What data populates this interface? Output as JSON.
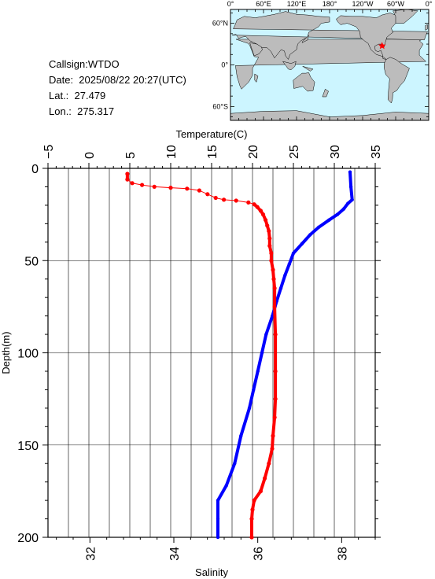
{
  "info": {
    "callsign": "Callsign:WTDO",
    "date": "Date:  2025/08/22 20:27(UTC)",
    "lat": "Lat.:  27.479",
    "lon": "Lon.:  275.317"
  },
  "map": {
    "top_labels": [
      "0°",
      "60°E",
      "120°E",
      "180°",
      "120°W",
      "60°W",
      "0°"
    ],
    "left_labels": [
      "60°N",
      "0°",
      "60°S"
    ],
    "ocean_color": "#ccf5ff",
    "land_color": "#bcbcbc",
    "marker_color": "#ff0000",
    "marker_lon": 275.317,
    "marker_lat": 27.479
  },
  "chart_data": {
    "type": "line",
    "ylabel": "Depth(m)",
    "ylim": [
      200,
      0
    ],
    "yticks": [
      0,
      50,
      100,
      150,
      200
    ],
    "top_axis": {
      "label": "Temperature(C)",
      "range": [
        -5,
        35
      ],
      "ticks": [
        "−5",
        "0",
        "5",
        "10",
        "15",
        "20",
        "25",
        "30",
        "35"
      ]
    },
    "bottom_axis": {
      "label": "Salinity",
      "range": [
        31,
        38.8
      ],
      "ticks": [
        "32",
        "34",
        "36",
        "38"
      ]
    },
    "grid": true,
    "series": [
      {
        "axis": "temperature",
        "color": "#ff0000",
        "points": [
          [
            4.7,
            3
          ],
          [
            4.7,
            6
          ],
          [
            5.3,
            8
          ],
          [
            6.5,
            9
          ],
          [
            8,
            10
          ],
          [
            10,
            10.5
          ],
          [
            12,
            11
          ],
          [
            13.5,
            12
          ],
          [
            14.5,
            14
          ],
          [
            15.5,
            16
          ],
          [
            16.5,
            17
          ],
          [
            18,
            17.5
          ],
          [
            19.5,
            18.5
          ],
          [
            20.2,
            19.5
          ],
          [
            20.6,
            21
          ],
          [
            21,
            23
          ],
          [
            21.3,
            25
          ],
          [
            21.6,
            28
          ],
          [
            21.8,
            31
          ],
          [
            22,
            34
          ],
          [
            22.1,
            38
          ],
          [
            22.1,
            42
          ],
          [
            22.3,
            46
          ],
          [
            22.3,
            50
          ],
          [
            22.5,
            55
          ],
          [
            22.6,
            60
          ],
          [
            22.7,
            65
          ],
          [
            22.7,
            75
          ],
          [
            22.8,
            90
          ],
          [
            22.8,
            110
          ],
          [
            22.8,
            125
          ],
          [
            22.7,
            135
          ],
          [
            22.5,
            145
          ],
          [
            22.4,
            152
          ],
          [
            22,
            160
          ],
          [
            21.5,
            168
          ],
          [
            21,
            175
          ],
          [
            20.2,
            180
          ],
          [
            20,
            185
          ],
          [
            19.9,
            190
          ],
          [
            19.9,
            200
          ]
        ]
      },
      {
        "axis": "salinity",
        "color": "#0000ff",
        "points": [
          [
            38.2,
            2
          ],
          [
            38.22,
            10
          ],
          [
            38.25,
            17
          ],
          [
            38.15,
            19
          ],
          [
            38.05,
            22
          ],
          [
            37.9,
            25
          ],
          [
            37.7,
            28
          ],
          [
            37.45,
            32
          ],
          [
            37.25,
            36
          ],
          [
            37.05,
            41
          ],
          [
            36.85,
            46
          ],
          [
            36.75,
            52
          ],
          [
            36.65,
            58
          ],
          [
            36.55,
            65
          ],
          [
            36.45,
            72
          ],
          [
            36.35,
            80
          ],
          [
            36.2,
            90
          ],
          [
            36.1,
            100
          ],
          [
            36,
            110
          ],
          [
            35.9,
            120
          ],
          [
            35.8,
            130
          ],
          [
            35.6,
            145
          ],
          [
            35.45,
            160
          ],
          [
            35.25,
            172
          ],
          [
            35.05,
            180
          ],
          [
            35.05,
            190
          ],
          [
            35.05,
            200
          ]
        ]
      }
    ]
  }
}
